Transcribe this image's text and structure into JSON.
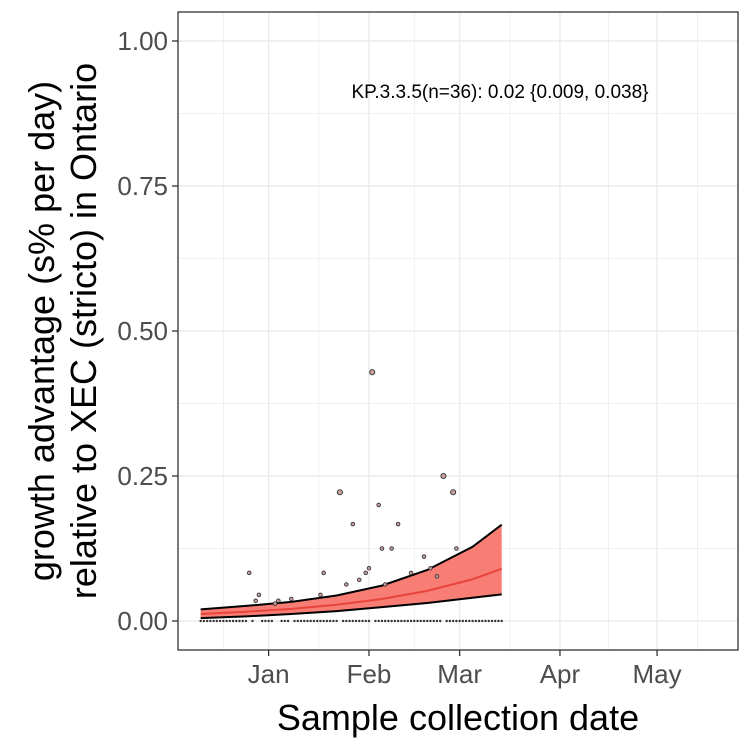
{
  "chart_data": {
    "type": "scatter",
    "title": "",
    "xlabel": "Sample collection date",
    "ylabel_line1": "growth advantage (s% per day)",
    "ylabel_line2": "relative to XEC (stricto) in Ontario",
    "annotation": "KP.3.3.5(n=36): 0.02 {0.009, 0.038}",
    "xlim": [
      "2024-12-04",
      "2025-05-26"
    ],
    "ylim": [
      -0.05,
      1.05
    ],
    "x_ticks": [
      {
        "date": "2025-01-01",
        "label": "Jan"
      },
      {
        "date": "2025-02-01",
        "label": "Feb"
      },
      {
        "date": "2025-03-01",
        "label": "Mar"
      },
      {
        "date": "2025-04-01",
        "label": "Apr"
      },
      {
        "date": "2025-05-01",
        "label": "May"
      }
    ],
    "y_ticks": [
      {
        "value": 0.0,
        "label": "0.00"
      },
      {
        "value": 0.25,
        "label": "0.25"
      },
      {
        "value": 0.5,
        "label": "0.50"
      },
      {
        "value": 0.75,
        "label": "0.75"
      },
      {
        "value": 1.0,
        "label": "1.00"
      }
    ],
    "grid": true,
    "colors": {
      "ribbon": "#f8766d",
      "fit_line": "#e8453c",
      "bound_line": "#000000",
      "point_fill": "#c9a0a0",
      "point_stroke": "#333333",
      "gridline": "#ebebeb",
      "panel_border": "#333333"
    },
    "series": [
      {
        "kind": "points",
        "points": [
          {
            "x": "2024-12-26",
            "y": 0.083
          },
          {
            "x": "2024-12-28",
            "y": 0.035
          },
          {
            "x": "2024-12-29",
            "y": 0.045
          },
          {
            "x": "2025-01-03",
            "y": 0.03
          },
          {
            "x": "2025-01-04",
            "y": 0.035
          },
          {
            "x": "2025-01-08",
            "y": 0.038
          },
          {
            "x": "2025-01-17",
            "y": 0.045
          },
          {
            "x": "2025-01-18",
            "y": 0.083
          },
          {
            "x": "2025-01-23",
            "y": 0.222
          },
          {
            "x": "2025-01-25",
            "y": 0.063
          },
          {
            "x": "2025-01-27",
            "y": 0.167
          },
          {
            "x": "2025-01-29",
            "y": 0.071
          },
          {
            "x": "2025-01-31",
            "y": 0.083
          },
          {
            "x": "2025-02-01",
            "y": 0.091
          },
          {
            "x": "2025-02-02",
            "y": 0.429
          },
          {
            "x": "2025-02-04",
            "y": 0.2
          },
          {
            "x": "2025-02-05",
            "y": 0.125
          },
          {
            "x": "2025-02-06",
            "y": 0.063
          },
          {
            "x": "2025-02-08",
            "y": 0.125
          },
          {
            "x": "2025-02-10",
            "y": 0.167
          },
          {
            "x": "2025-02-14",
            "y": 0.083
          },
          {
            "x": "2025-02-18",
            "y": 0.111
          },
          {
            "x": "2025-02-20",
            "y": 0.091
          },
          {
            "x": "2025-02-22",
            "y": 0.077
          },
          {
            "x": "2025-02-24",
            "y": 0.25
          },
          {
            "x": "2025-02-27",
            "y": 0.222
          },
          {
            "x": "2025-02-28",
            "y": 0.125
          }
        ],
        "zero_points_start": "2024-12-11",
        "zero_points_end": "2025-03-14",
        "zero_gaps": [
          "2024-12-26",
          "2024-12-28",
          "2024-12-29",
          "2025-01-03",
          "2025-01-04",
          "2025-01-08",
          "2025-01-23",
          "2025-02-02",
          "2025-02-24"
        ]
      },
      {
        "kind": "fit",
        "x": [
          "2024-12-11",
          "2024-12-25",
          "2025-01-08",
          "2025-01-22",
          "2025-02-05",
          "2025-02-19",
          "2025-03-05",
          "2025-03-14"
        ],
        "fit": [
          0.012,
          0.016,
          0.021,
          0.028,
          0.038,
          0.052,
          0.072,
          0.09
        ],
        "lower": [
          0.005,
          0.008,
          0.012,
          0.017,
          0.024,
          0.031,
          0.04,
          0.046
        ],
        "upper": [
          0.02,
          0.026,
          0.033,
          0.044,
          0.061,
          0.088,
          0.128,
          0.166
        ]
      }
    ]
  }
}
